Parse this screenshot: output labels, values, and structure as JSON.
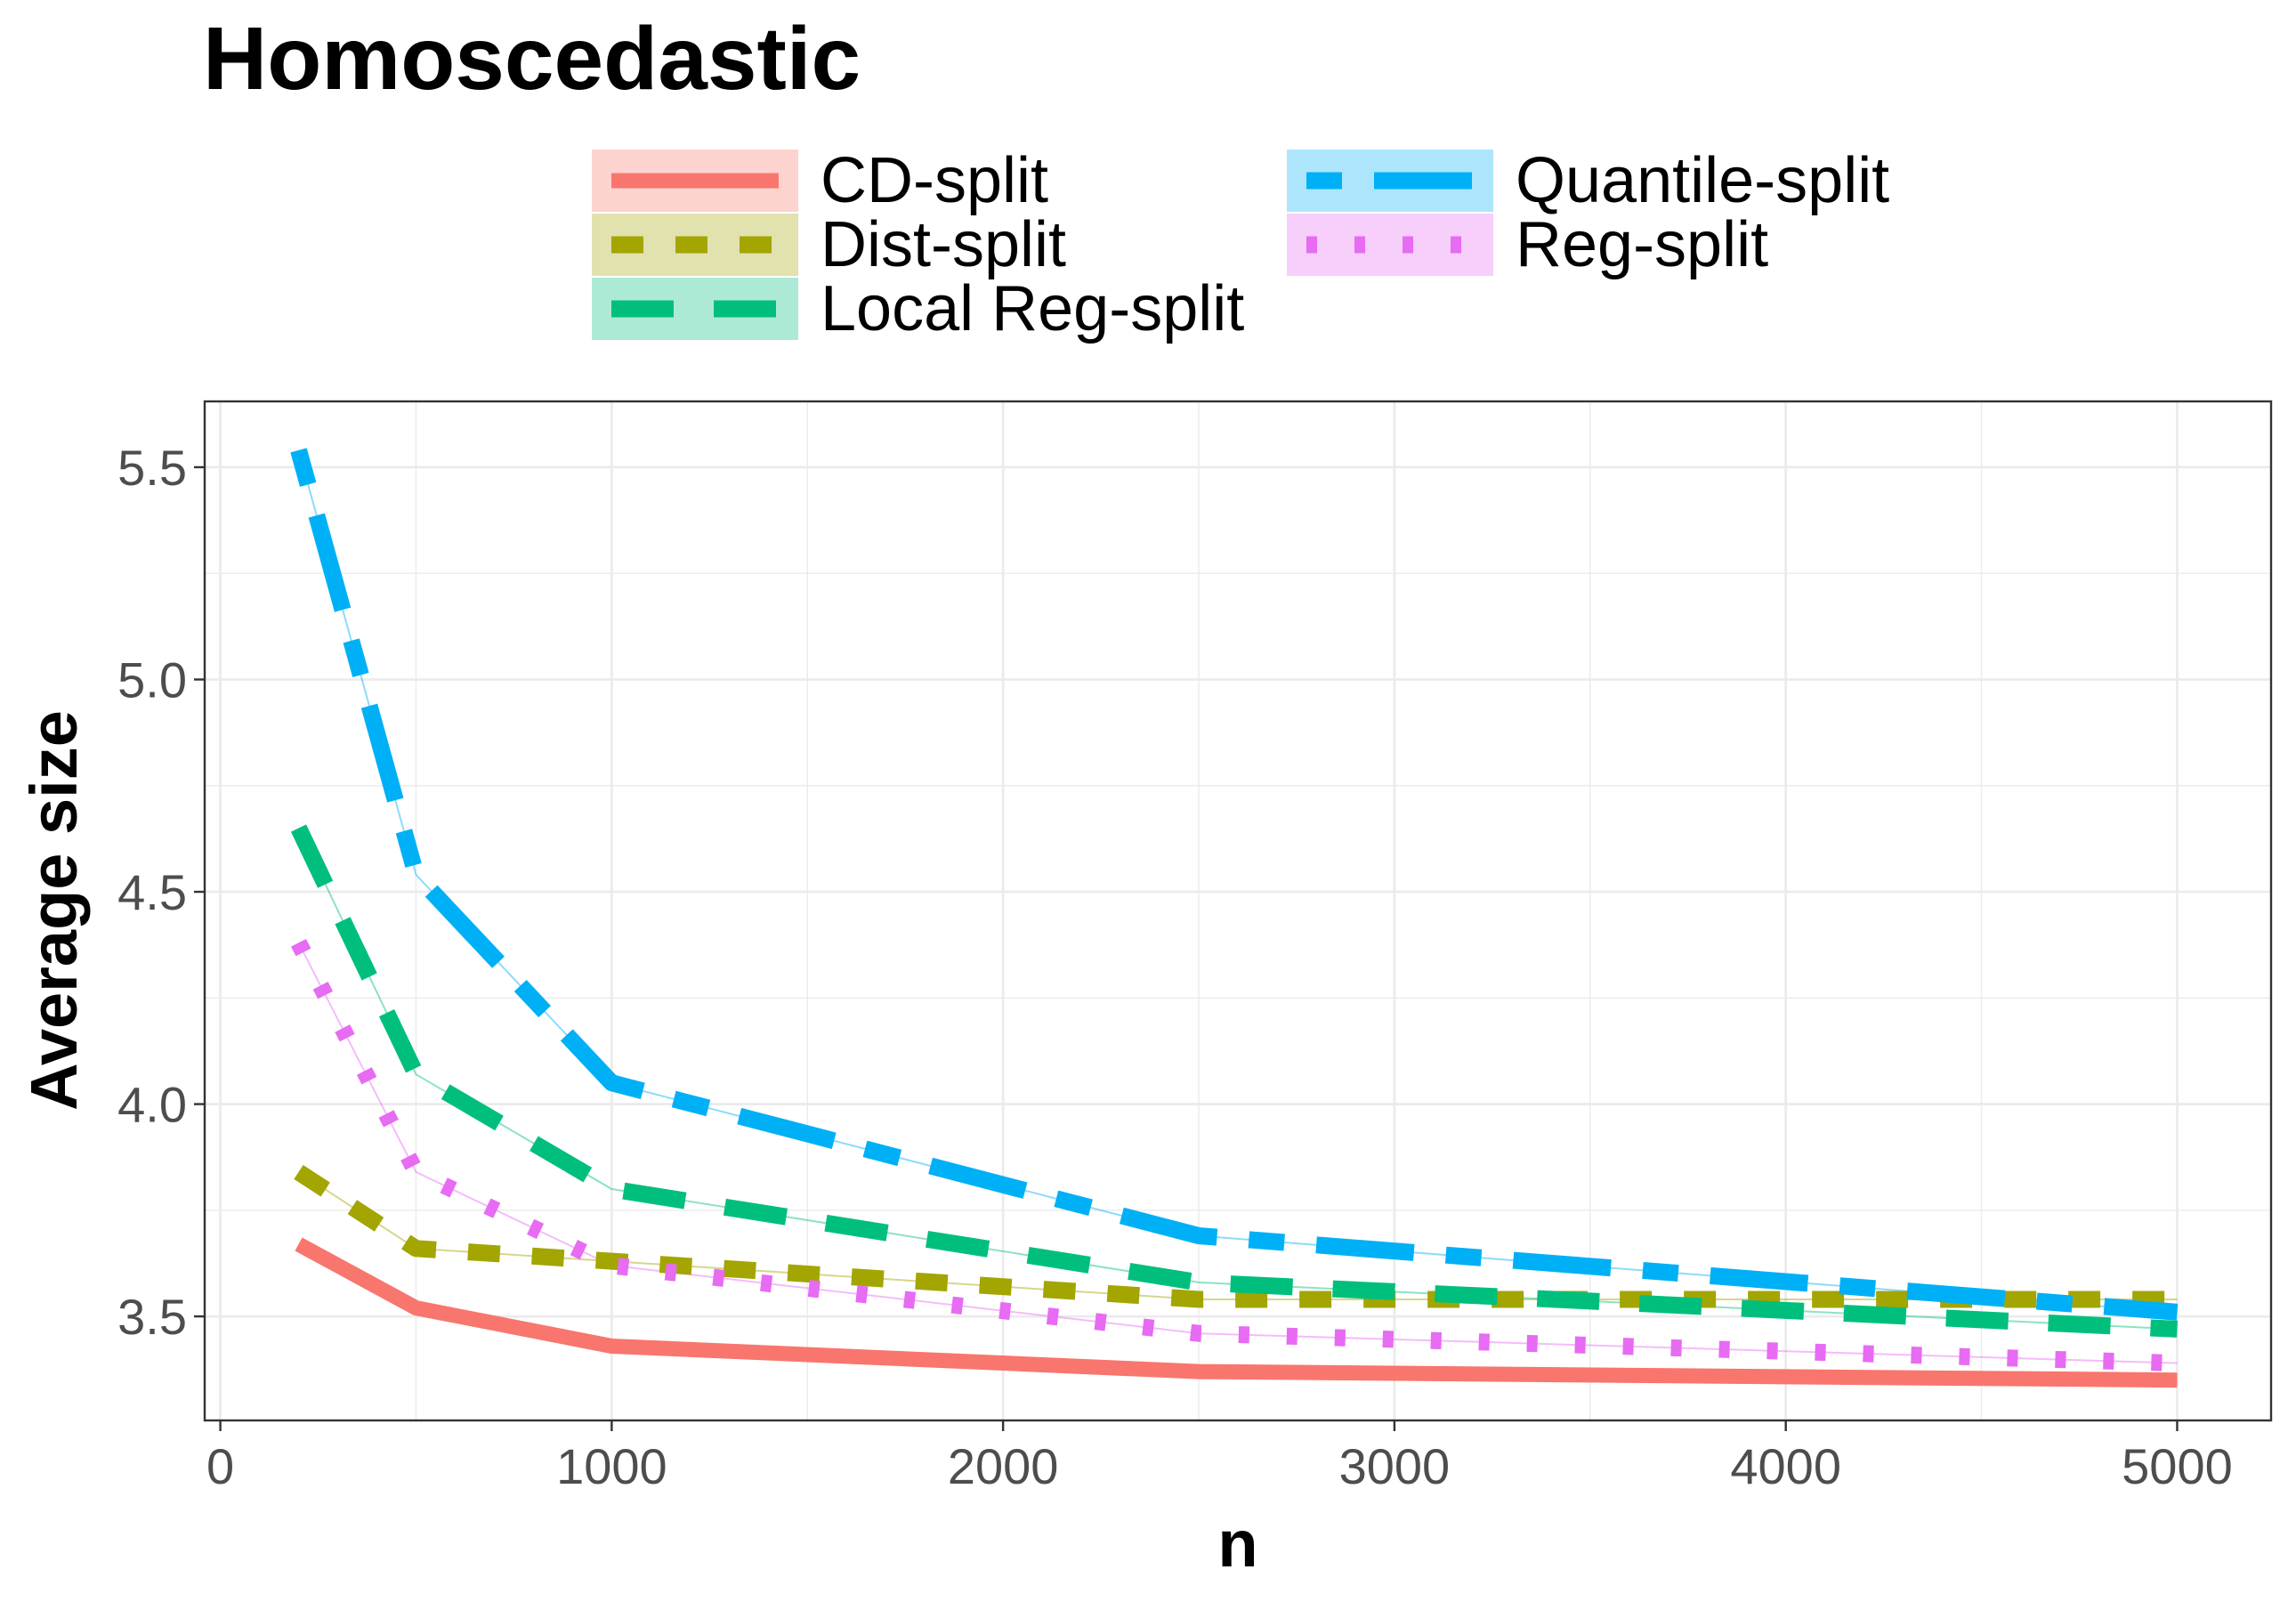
{
  "chart_data": {
    "type": "line",
    "title": "Homoscedastic",
    "xlabel": "n",
    "ylabel": "Average size",
    "xlim": [
      -40,
      5240
    ],
    "ylim": [
      3.255,
      5.655
    ],
    "x_ticks": [
      0,
      1000,
      2000,
      3000,
      4000,
      5000
    ],
    "x_tick_labels": [
      "0",
      "1000",
      "2000",
      "3000",
      "4000",
      "5000"
    ],
    "y_ticks": [
      3.5,
      4.0,
      4.5,
      5.0,
      5.5
    ],
    "y_tick_labels": [
      "3.5",
      "4.0",
      "4.5",
      "5.0",
      "5.5"
    ],
    "grid": true,
    "legend_position": "top",
    "x": [
      200,
      500,
      1000,
      2500,
      5000
    ],
    "series": [
      {
        "name": "CD-split",
        "color": "#F8766D",
        "dash": "solid",
        "values": [
          3.67,
          3.52,
          3.43,
          3.37,
          3.35
        ]
      },
      {
        "name": "Dist-split",
        "color": "#A3A500",
        "dash": "dashed",
        "values": [
          3.84,
          3.66,
          3.63,
          3.54,
          3.54
        ]
      },
      {
        "name": "Local Reg-split",
        "color": "#00BF7D",
        "dash": "longdash",
        "values": [
          4.65,
          4.07,
          3.8,
          3.58,
          3.47
        ]
      },
      {
        "name": "Quantile-split",
        "color": "#00B0F6",
        "dash": "twodash",
        "values": [
          5.54,
          4.54,
          4.05,
          3.69,
          3.51
        ]
      },
      {
        "name": "Reg-split",
        "color": "#E76BF3",
        "dash": "dotted",
        "values": [
          4.38,
          3.84,
          3.62,
          3.46,
          3.39
        ]
      }
    ]
  }
}
